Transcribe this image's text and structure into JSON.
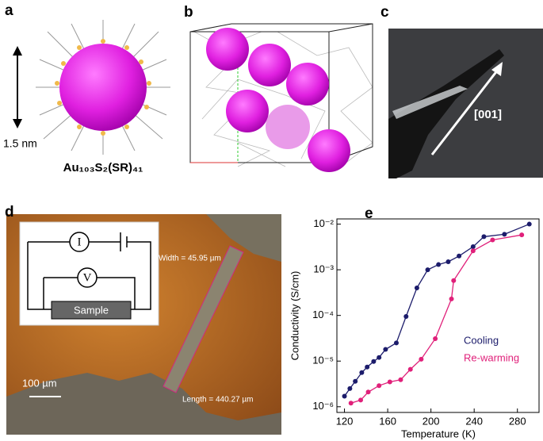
{
  "panels": {
    "a": {
      "label": "a",
      "scale": "1.5 nm",
      "formula": "Au₁₀₃S₂(SR)₄₁"
    },
    "b": {
      "label": "b"
    },
    "c": {
      "label": "c",
      "direction": "[001]"
    },
    "d": {
      "label": "d",
      "circuit": [
        "I",
        "V",
        "Sample"
      ],
      "width": "Width = 45.95 µm",
      "length": "Length = 440.27 µm",
      "scale_bar": "100 µm"
    },
    "e": {
      "label": "e"
    }
  },
  "chart_data": {
    "type": "line",
    "xlabel": "Temperature (K)",
    "ylabel": "Conductivity (S/cm)",
    "xlim": [
      113,
      300
    ],
    "ylim": [
      7.5e-07,
      0.013
    ],
    "log_y": true,
    "xticks": [
      120,
      160,
      200,
      240,
      280
    ],
    "yticks": [
      {
        "value": 1e-06,
        "label": "10⁻⁶"
      },
      {
        "value": 1e-05,
        "label": "10⁻⁵"
      },
      {
        "value": 0.0001,
        "label": "10⁻⁴"
      },
      {
        "value": 0.001,
        "label": "10⁻³"
      },
      {
        "value": 0.01,
        "label": "10⁻²"
      }
    ],
    "legend": "right",
    "series": [
      {
        "name": "Cooling",
        "color": "#1c1c6b",
        "x": [
          120,
          125,
          130,
          136,
          141,
          147,
          152,
          158,
          168,
          177,
          187,
          197,
          207,
          216,
          226,
          239,
          249,
          268,
          291
        ],
        "values": [
          1.7e-06,
          2.5e-06,
          3.6e-06,
          5.6e-06,
          7.4e-06,
          9.8e-06,
          1.2e-05,
          1.8e-05,
          2.5e-05,
          9.5e-05,
          0.0004,
          0.001,
          0.0013,
          0.0015,
          0.002,
          0.0032,
          0.0053,
          0.006,
          0.01
        ]
      },
      {
        "name": "Re-warming",
        "color": "#e0207a",
        "x": [
          126,
          135,
          142,
          152,
          162,
          172,
          181,
          191,
          204,
          219,
          221,
          239,
          257,
          284
        ],
        "values": [
          1.2e-06,
          1.4e-06,
          2.1e-06,
          2.9e-06,
          3.5e-06,
          3.9e-06,
          6.6e-06,
          1.1e-05,
          3.1e-05,
          0.00023,
          0.00058,
          0.0026,
          0.0045,
          0.0058
        ]
      }
    ]
  }
}
